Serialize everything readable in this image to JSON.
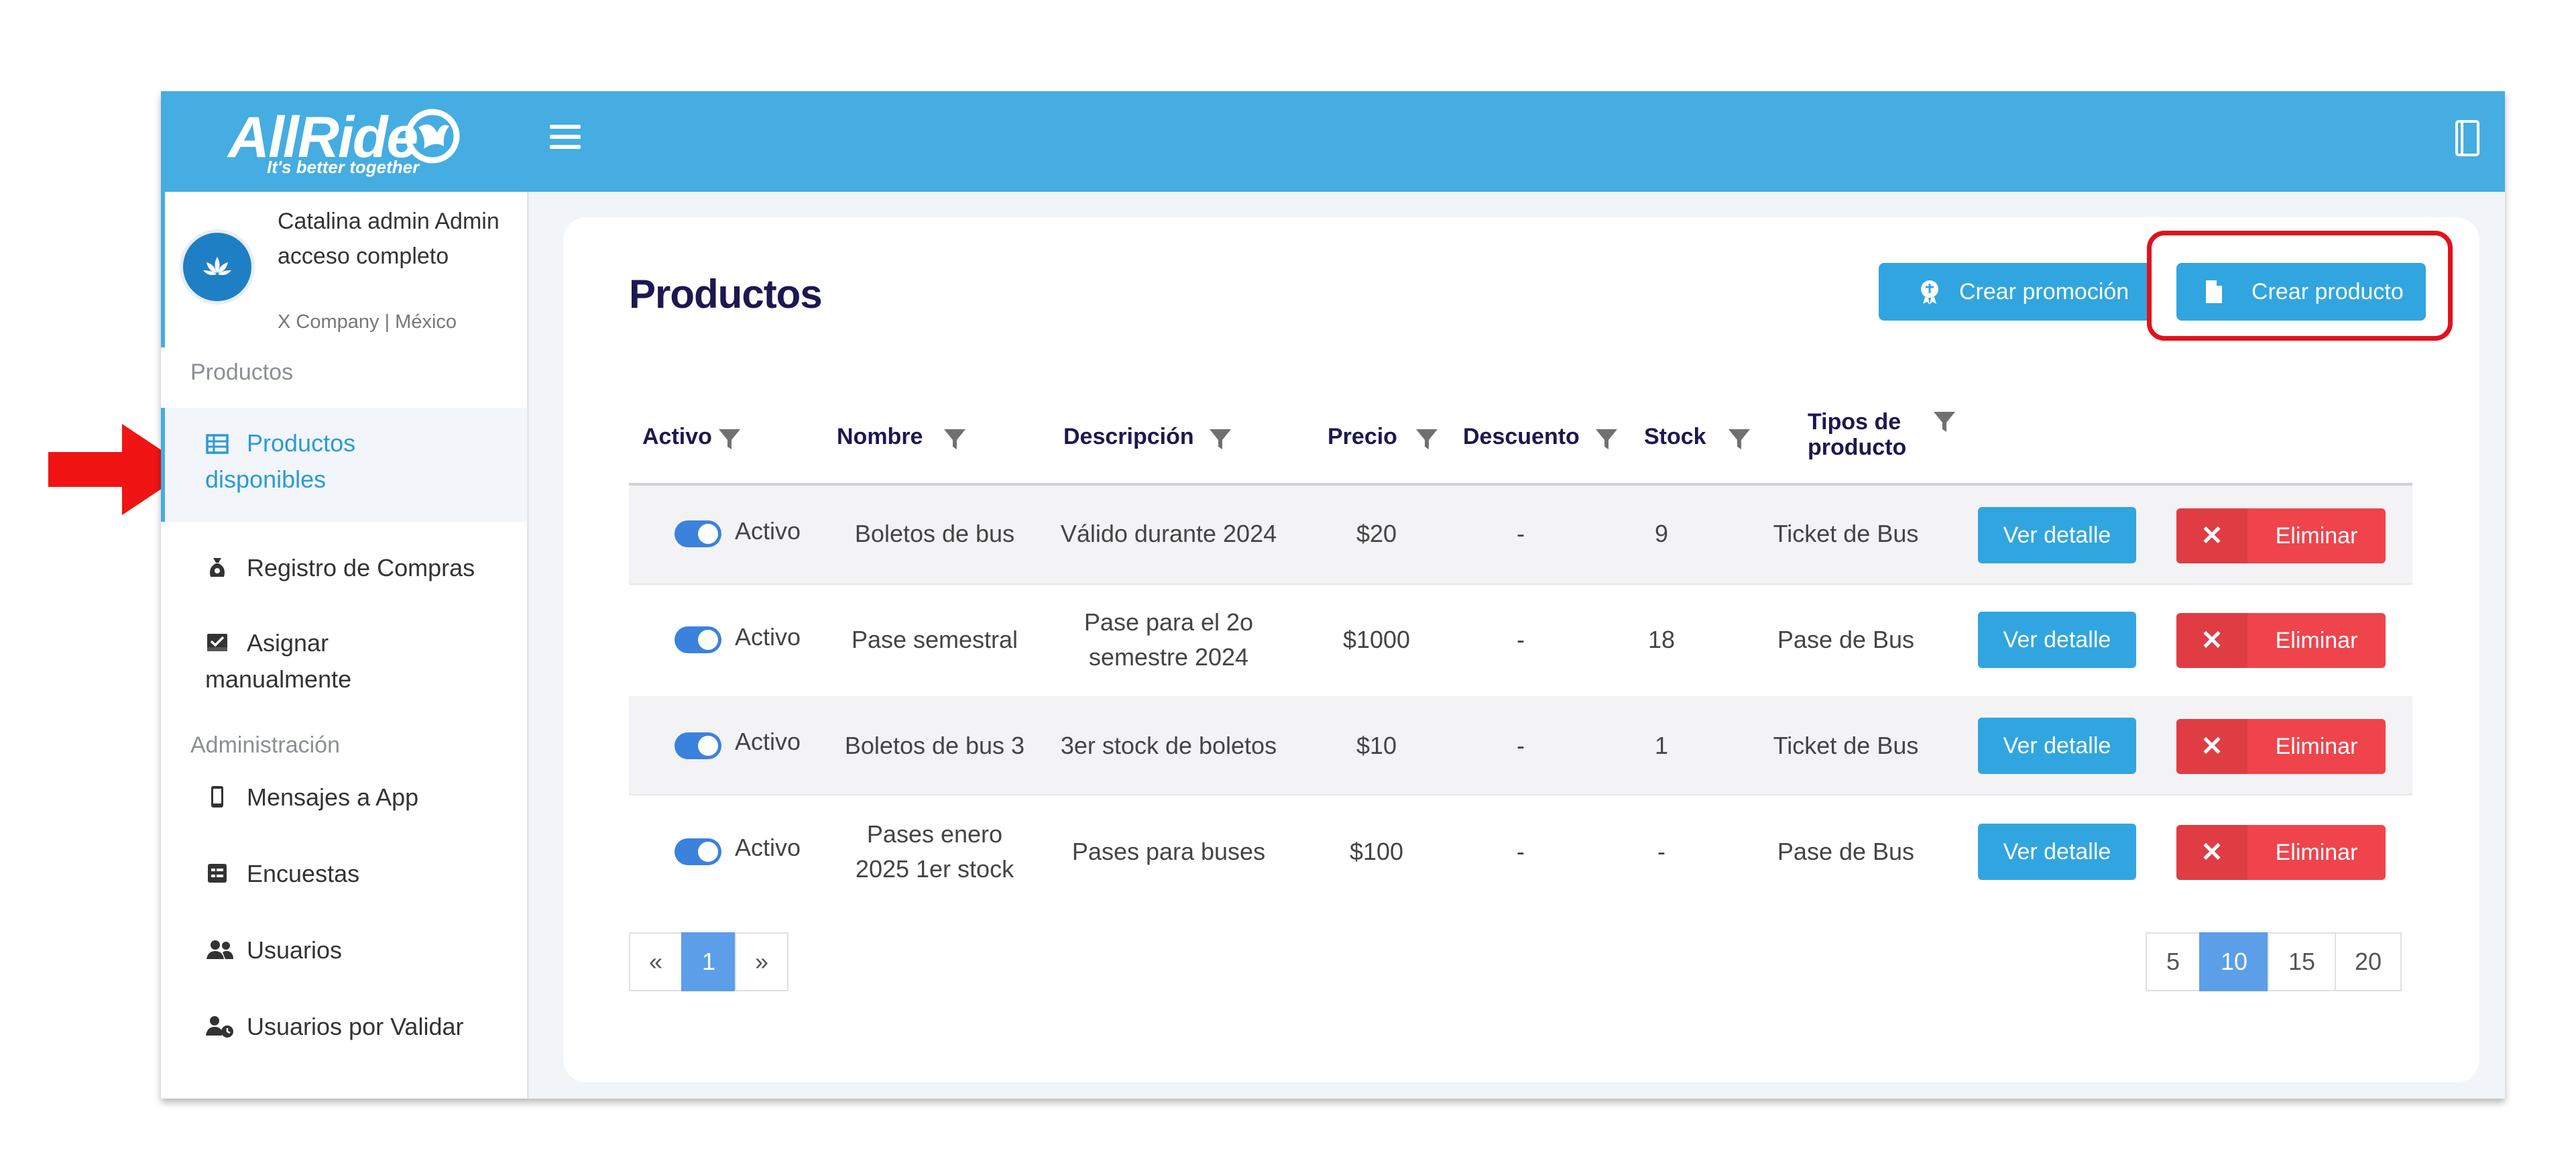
{
  "logo": {
    "brand": "AllRide",
    "tagline": "It's better together"
  },
  "user": {
    "name": "Catalina admin Admin acceso completo",
    "company": "X Company | México"
  },
  "sidebar": {
    "section_products": "Productos",
    "section_admin": "Administración",
    "items": [
      {
        "label": "Productos disponibles",
        "icon": "table-icon",
        "active": true
      },
      {
        "label": "Registro de Compras",
        "icon": "money-bag-icon"
      },
      {
        "label": "Asignar manualmente",
        "icon": "inbox-assign-icon"
      },
      {
        "label": "Mensajes a App",
        "icon": "mobile-icon"
      },
      {
        "label": "Encuestas",
        "icon": "survey-icon"
      },
      {
        "label": "Usuarios",
        "icon": "users-icon"
      },
      {
        "label": "Usuarios por Validar",
        "icon": "user-clock-icon"
      }
    ]
  },
  "page": {
    "title": "Productos",
    "btn_promo": "Crear promoción",
    "btn_create": "Crear producto"
  },
  "table": {
    "headers": [
      "Activo",
      "Nombre",
      "Descripción",
      "Precio",
      "Descuento",
      "Stock",
      "Tipos de producto"
    ],
    "rows": [
      {
        "active": "Activo",
        "name": "Boletos de bus",
        "desc": "Válido durante 2024",
        "price": "$20",
        "discount": "-",
        "stock": "9",
        "type": "Ticket de Bus",
        "view": "Ver detalle",
        "delete": "Eliminar"
      },
      {
        "active": "Activo",
        "name": "Pase semestral",
        "desc": "Pase para el 2o semestre 2024",
        "price": "$1000",
        "discount": "-",
        "stock": "18",
        "type": "Pase de Bus",
        "view": "Ver detalle",
        "delete": "Eliminar"
      },
      {
        "active": "Activo",
        "name": "Boletos de bus 3",
        "desc": "3er stock de boletos",
        "price": "$10",
        "discount": "-",
        "stock": "1",
        "type": "Ticket de Bus",
        "view": "Ver detalle",
        "delete": "Eliminar"
      },
      {
        "active": "Activo",
        "name": "Pases enero 2025 1er stock",
        "desc": "Pases para buses",
        "price": "$100",
        "discount": "-",
        "stock": "-",
        "type": "Pase de Bus",
        "view": "Ver detalle",
        "delete": "Eliminar"
      }
    ]
  },
  "pagination": {
    "prev": "«",
    "current": "1",
    "next": "»",
    "sizes": [
      "5",
      "10",
      "15",
      "20"
    ],
    "selected_size": "10"
  },
  "colors": {
    "topbar": "#45ade2",
    "primary_button": "#31a5df",
    "danger": "#ef444c",
    "title": "#1c1850",
    "highlight": "#e3111b",
    "arrow": "#f01414"
  }
}
